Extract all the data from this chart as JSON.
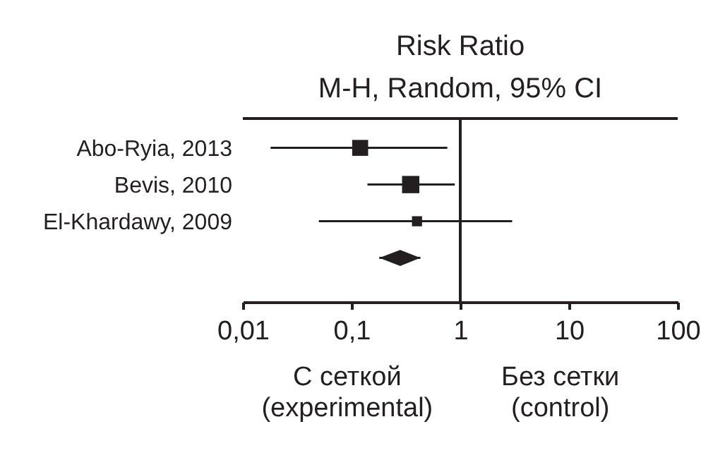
{
  "chart_data": {
    "type": "scatter",
    "orientation": "horizontal",
    "title": "Risk Ratio",
    "subtitle": "M-H, Random, 95% CI",
    "categories": [
      "Abo-Ryia, 2013",
      "Bevis, 2010",
      "El-Khardawy, 2009",
      null
    ],
    "series": [
      {
        "color": "#231f20",
        "marker": "square",
        "values": [
          0.12,
          0.35,
          0.4,
          null
        ],
        "errors": [
          [
            0.018,
            0.76
          ],
          [
            0.14,
            0.89
          ],
          [
            0.05,
            3.0
          ],
          null
        ],
        "sizes": [
          0.85,
          1,
          0.34,
          null
        ]
      },
      {
        "color": "#231f20",
        "marker": "diamond",
        "values": [
          null,
          null,
          null,
          0.28
        ],
        "errors": [
          null,
          null,
          null,
          [
            0.18,
            0.43
          ]
        ]
      }
    ],
    "log": "x",
    "xlim": [
      0.01,
      100
    ],
    "xticks": [
      {
        "value": 0.01,
        "label": "0,01"
      },
      {
        "value": 0.1,
        "label": "0,1"
      },
      1,
      10,
      100
    ],
    "ref_lines": [
      {
        "axis": "x",
        "value": 1
      }
    ],
    "annotations": [
      "С сеткой\n(experimental)",
      "Без сетки\n(control)"
    ]
  }
}
